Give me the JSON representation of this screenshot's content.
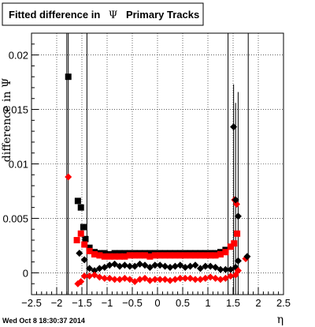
{
  "title": {
    "prefix": "Fitted difference in",
    "symbol": "Ψ",
    "suffix": "Primary Tracks"
  },
  "timestamp": "Wed Oct  8 18:30:37 2014",
  "colors": {
    "black": "#000000",
    "red": "#ff0000",
    "grid": "#000000"
  },
  "chart_data": {
    "type": "scatter",
    "xlabel": "η",
    "ylabel": "difference in Ψ",
    "xlim": [
      -2.5,
      2.5
    ],
    "ylim": [
      -0.002,
      0.022
    ],
    "x_ticks": [
      -2.5,
      -2,
      -1.5,
      -1,
      -0.5,
      0,
      0.5,
      1,
      1.5,
      2,
      2.5
    ],
    "x_tick_labels": [
      "−2.5",
      "−2",
      "−1.5",
      "−1",
      "−0.5",
      "0",
      "0.5",
      "1",
      "1.5",
      "2",
      "2.5"
    ],
    "y_ticks": [
      0,
      0.005,
      0.01,
      0.015,
      0.02
    ],
    "y_tick_labels": [
      "0",
      "0.005",
      "0.01",
      "0.015",
      "0.02"
    ],
    "grid": true,
    "vlines": [
      -1.8,
      -1.4,
      1.4,
      1.8
    ],
    "series": [
      {
        "color": "#000000",
        "marker": "square",
        "points": [
          {
            "x": -1.77,
            "y": 0.018
          },
          {
            "x": -1.58,
            "y": 0.0066
          },
          {
            "x": -1.52,
            "y": 0.006
          },
          {
            "x": -1.47,
            "y": 0.0042
          },
          {
            "x": -1.43,
            "y": 0.0031
          }
        ]
      },
      {
        "color": "#ff0000",
        "marker": "diamond",
        "points": [
          {
            "x": -1.77,
            "y": 0.0088
          },
          {
            "x": 1.53,
            "y": 0.0067
          },
          {
            "x": 1.57,
            "y": 0.0063
          },
          {
            "x": 1.75,
            "y": 0.0013
          }
        ]
      },
      {
        "color": "#000000",
        "marker": "diamond",
        "points": [
          {
            "x": 1.51,
            "y": 0.0134
          },
          {
            "x": 1.55,
            "y": 0.0067
          },
          {
            "x": 1.6,
            "y": 0.0052
          },
          {
            "x": 1.78,
            "y": 0.0015
          }
        ]
      },
      {
        "color": "#000000",
        "marker": "square",
        "band": "upper",
        "points": [
          {
            "x": -1.35,
            "y": 0.0023
          },
          {
            "x": -1.25,
            "y": 0.0019
          },
          {
            "x": -1.15,
            "y": 0.0018
          },
          {
            "x": -1.05,
            "y": 0.0018
          },
          {
            "x": -0.95,
            "y": 0.0017
          },
          {
            "x": -0.85,
            "y": 0.0018
          },
          {
            "x": -0.75,
            "y": 0.0018
          },
          {
            "x": -0.65,
            "y": 0.0018
          },
          {
            "x": -0.55,
            "y": 0.0018
          },
          {
            "x": -0.45,
            "y": 0.0018
          },
          {
            "x": -0.35,
            "y": 0.0018
          },
          {
            "x": -0.25,
            "y": 0.0018
          },
          {
            "x": -0.15,
            "y": 0.0018
          },
          {
            "x": -0.05,
            "y": 0.0018
          },
          {
            "x": 0.05,
            "y": 0.0018
          },
          {
            "x": 0.15,
            "y": 0.0018
          },
          {
            "x": 0.25,
            "y": 0.0018
          },
          {
            "x": 0.35,
            "y": 0.0018
          },
          {
            "x": 0.45,
            "y": 0.0018
          },
          {
            "x": 0.55,
            "y": 0.0018
          },
          {
            "x": 0.65,
            "y": 0.0018
          },
          {
            "x": 0.75,
            "y": 0.0018
          },
          {
            "x": 0.85,
            "y": 0.0018
          },
          {
            "x": 0.95,
            "y": 0.0018
          },
          {
            "x": 1.05,
            "y": 0.0018
          },
          {
            "x": 1.15,
            "y": 0.0018
          },
          {
            "x": 1.25,
            "y": 0.0019
          },
          {
            "x": 1.35,
            "y": 0.0021
          }
        ]
      },
      {
        "color": "#ff0000",
        "marker": "square",
        "band": "upper",
        "points": [
          {
            "x": -1.6,
            "y": 0.003
          },
          {
            "x": -1.52,
            "y": 0.0036
          },
          {
            "x": -1.45,
            "y": 0.0026
          },
          {
            "x": -1.35,
            "y": 0.002
          },
          {
            "x": -1.25,
            "y": 0.0017
          },
          {
            "x": -1.15,
            "y": 0.0016
          },
          {
            "x": -1.05,
            "y": 0.0015
          },
          {
            "x": -0.95,
            "y": 0.0015
          },
          {
            "x": -0.85,
            "y": 0.0015
          },
          {
            "x": -0.75,
            "y": 0.0015
          },
          {
            "x": -0.65,
            "y": 0.0015
          },
          {
            "x": -0.55,
            "y": 0.0016
          },
          {
            "x": -0.45,
            "y": 0.0016
          },
          {
            "x": -0.35,
            "y": 0.0016
          },
          {
            "x": -0.25,
            "y": 0.0016
          },
          {
            "x": -0.15,
            "y": 0.0015
          },
          {
            "x": -0.05,
            "y": 0.0016
          },
          {
            "x": 0.05,
            "y": 0.0016
          },
          {
            "x": 0.15,
            "y": 0.0016
          },
          {
            "x": 0.25,
            "y": 0.0016
          },
          {
            "x": 0.35,
            "y": 0.0016
          },
          {
            "x": 0.45,
            "y": 0.0016
          },
          {
            "x": 0.55,
            "y": 0.0016
          },
          {
            "x": 0.65,
            "y": 0.0016
          },
          {
            "x": 0.75,
            "y": 0.0016
          },
          {
            "x": 0.85,
            "y": 0.0016
          },
          {
            "x": 0.95,
            "y": 0.0016
          },
          {
            "x": 1.05,
            "y": 0.0016
          },
          {
            "x": 1.15,
            "y": 0.0016
          },
          {
            "x": 1.25,
            "y": 0.0017
          },
          {
            "x": 1.35,
            "y": 0.0019
          },
          {
            "x": 1.45,
            "y": 0.0024
          },
          {
            "x": 1.52,
            "y": 0.0027
          },
          {
            "x": 1.58,
            "y": 0.0036
          }
        ]
      },
      {
        "color": "#000000",
        "marker": "diamond",
        "band": "middle",
        "points": [
          {
            "x": -1.55,
            "y": 0.0018
          },
          {
            "x": -1.45,
            "y": 0.0012
          },
          {
            "x": -1.35,
            "y": 0.0004
          },
          {
            "x": -1.25,
            "y": 0.0002
          },
          {
            "x": -1.15,
            "y": 0.0004
          },
          {
            "x": -1.05,
            "y": 0.0005
          },
          {
            "x": -0.95,
            "y": 0.0007
          },
          {
            "x": -0.85,
            "y": 0.0008
          },
          {
            "x": -0.75,
            "y": 0.0006
          },
          {
            "x": -0.65,
            "y": 0.0007
          },
          {
            "x": -0.55,
            "y": 0.0006
          },
          {
            "x": -0.45,
            "y": 0.0006
          },
          {
            "x": -0.35,
            "y": 0.0008
          },
          {
            "x": -0.25,
            "y": 0.0007
          },
          {
            "x": -0.15,
            "y": 0.0005
          },
          {
            "x": -0.05,
            "y": 0.0007
          },
          {
            "x": 0.05,
            "y": 0.0007
          },
          {
            "x": 0.15,
            "y": 0.0006
          },
          {
            "x": 0.25,
            "y": 0.0005
          },
          {
            "x": 0.35,
            "y": 0.0006
          },
          {
            "x": 0.45,
            "y": 0.0007
          },
          {
            "x": 0.55,
            "y": 0.0005
          },
          {
            "x": 0.65,
            "y": 0.0006
          },
          {
            "x": 0.75,
            "y": 0.0007
          },
          {
            "x": 0.85,
            "y": 0.0004
          },
          {
            "x": 0.95,
            "y": 0.0006
          },
          {
            "x": 1.05,
            "y": 0.0006
          },
          {
            "x": 1.15,
            "y": 0.0005
          },
          {
            "x": 1.25,
            "y": 0.0003
          },
          {
            "x": 1.35,
            "y": 0.0003
          },
          {
            "x": 1.45,
            "y": 0.0003
          },
          {
            "x": 1.55,
            "y": 0.0005
          },
          {
            "x": 1.6,
            "y": 0.0011
          }
        ]
      },
      {
        "color": "#ff0000",
        "marker": "diamond",
        "band": "lower",
        "points": [
          {
            "x": -1.58,
            "y": -0.001
          },
          {
            "x": -1.52,
            "y": -0.0008
          },
          {
            "x": -1.45,
            "y": -0.0003
          },
          {
            "x": -1.35,
            "y": -0.0003
          },
          {
            "x": -1.25,
            "y": -0.0002
          },
          {
            "x": -1.15,
            "y": -0.0004
          },
          {
            "x": -1.05,
            "y": -0.0005
          },
          {
            "x": -0.95,
            "y": -0.0005
          },
          {
            "x": -0.85,
            "y": -0.0006
          },
          {
            "x": -0.75,
            "y": -0.0006
          },
          {
            "x": -0.65,
            "y": -0.0005
          },
          {
            "x": -0.55,
            "y": -0.0006
          },
          {
            "x": -0.45,
            "y": -0.0008
          },
          {
            "x": -0.35,
            "y": -0.0006
          },
          {
            "x": -0.25,
            "y": -0.0005
          },
          {
            "x": -0.15,
            "y": -0.0007
          },
          {
            "x": -0.05,
            "y": -0.0006
          },
          {
            "x": 0.05,
            "y": -0.0006
          },
          {
            "x": 0.15,
            "y": -0.0006
          },
          {
            "x": 0.25,
            "y": -0.0007
          },
          {
            "x": 0.35,
            "y": -0.0006
          },
          {
            "x": 0.45,
            "y": -0.0005
          },
          {
            "x": 0.55,
            "y": -0.0005
          },
          {
            "x": 0.65,
            "y": -0.0005
          },
          {
            "x": 0.75,
            "y": -0.0006
          },
          {
            "x": 0.85,
            "y": -0.0006
          },
          {
            "x": 0.95,
            "y": -0.0005
          },
          {
            "x": 1.05,
            "y": -0.0004
          },
          {
            "x": 1.15,
            "y": -0.0005
          },
          {
            "x": 1.25,
            "y": -0.0006
          },
          {
            "x": 1.35,
            "y": -0.0005
          },
          {
            "x": 1.45,
            "y": -0.0003
          },
          {
            "x": 1.55,
            "y": -0.0002
          },
          {
            "x": 1.6,
            "y": 0.0002
          }
        ]
      }
    ],
    "error_bars": [
      {
        "x": -1.77,
        "ylow": -0.002,
        "yhigh": 0.022
      },
      {
        "x": 1.51,
        "ylow": -0.002,
        "yhigh": 0.0173
      },
      {
        "x": 1.55,
        "ylow": -0.002,
        "yhigh": 0.0156
      },
      {
        "x": 1.6,
        "ylow": -0.002,
        "yhigh": 0.0166
      }
    ]
  }
}
